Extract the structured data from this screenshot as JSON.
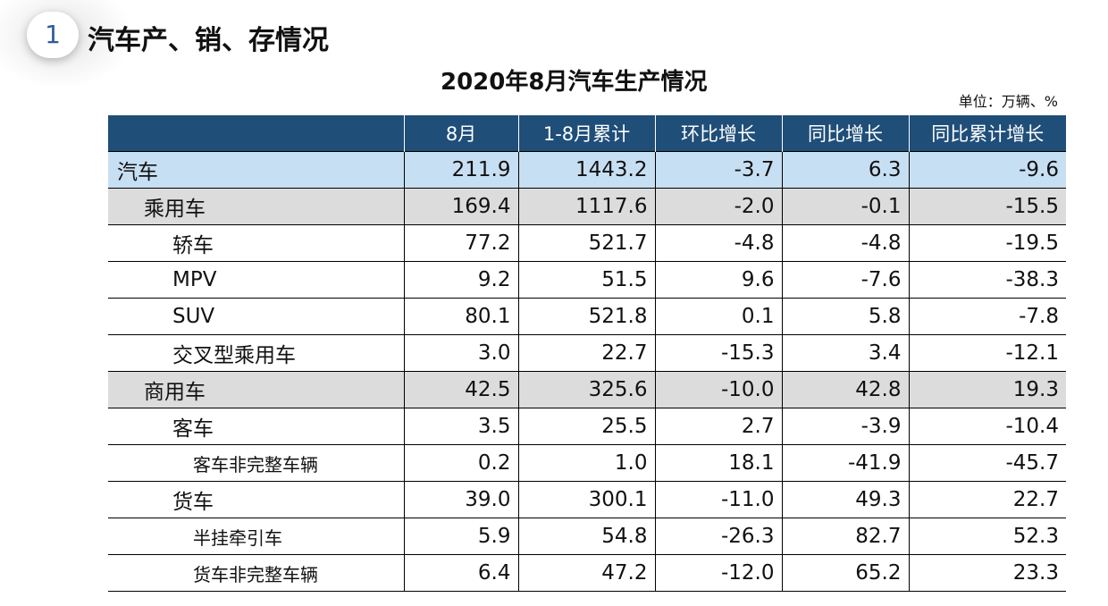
{
  "section": {
    "number": "1",
    "title": "汽车产、销、存情况"
  },
  "table_title": "2020年8月汽车生产情况",
  "unit": "单位：万辆、%",
  "table": {
    "headers": [
      "",
      "8月",
      "1-8月累计",
      "环比增长",
      "同比增长",
      "同比累计增长"
    ],
    "rows": [
      {
        "name": "汽车",
        "values": [
          "211.9",
          "1443.2",
          "-3.7",
          "6.3",
          "-9.6"
        ]
      },
      {
        "name": "乘用车",
        "values": [
          "169.4",
          "1117.6",
          "-2.0",
          "-0.1",
          "-15.5"
        ]
      },
      {
        "name": "轿车",
        "values": [
          "77.2",
          "521.7",
          "-4.8",
          "-4.8",
          "-19.5"
        ]
      },
      {
        "name": "MPV",
        "values": [
          "9.2",
          "51.5",
          "9.6",
          "-7.6",
          "-38.3"
        ]
      },
      {
        "name": "SUV",
        "values": [
          "80.1",
          "521.8",
          "0.1",
          "5.8",
          "-7.8"
        ]
      },
      {
        "name": "交叉型乘用车",
        "values": [
          "3.0",
          "22.7",
          "-15.3",
          "3.4",
          "-12.1"
        ]
      },
      {
        "name": "商用车",
        "values": [
          "42.5",
          "325.6",
          "-10.0",
          "42.8",
          "19.3"
        ]
      },
      {
        "name": "客车",
        "values": [
          "3.5",
          "25.5",
          "2.7",
          "-3.9",
          "-10.4"
        ]
      },
      {
        "name": "客车非完整车辆",
        "values": [
          "0.2",
          "1.0",
          "18.1",
          "-41.9",
          "-45.7"
        ]
      },
      {
        "name": "货车",
        "values": [
          "39.0",
          "300.1",
          "-11.0",
          "49.3",
          "22.7"
        ]
      },
      {
        "name": "半挂牵引车",
        "values": [
          "5.9",
          "54.8",
          "-26.3",
          "82.7",
          "52.3"
        ]
      },
      {
        "name": "货车非完整车辆",
        "values": [
          "6.4",
          "47.2",
          "-12.0",
          "65.2",
          "23.3"
        ]
      }
    ]
  },
  "colors": {
    "header_bg": "#1f4e79",
    "total_row_bg": "#c7dff3",
    "category_row_bg": "#dcdcdc",
    "section_number": "#2f5aa0"
  }
}
